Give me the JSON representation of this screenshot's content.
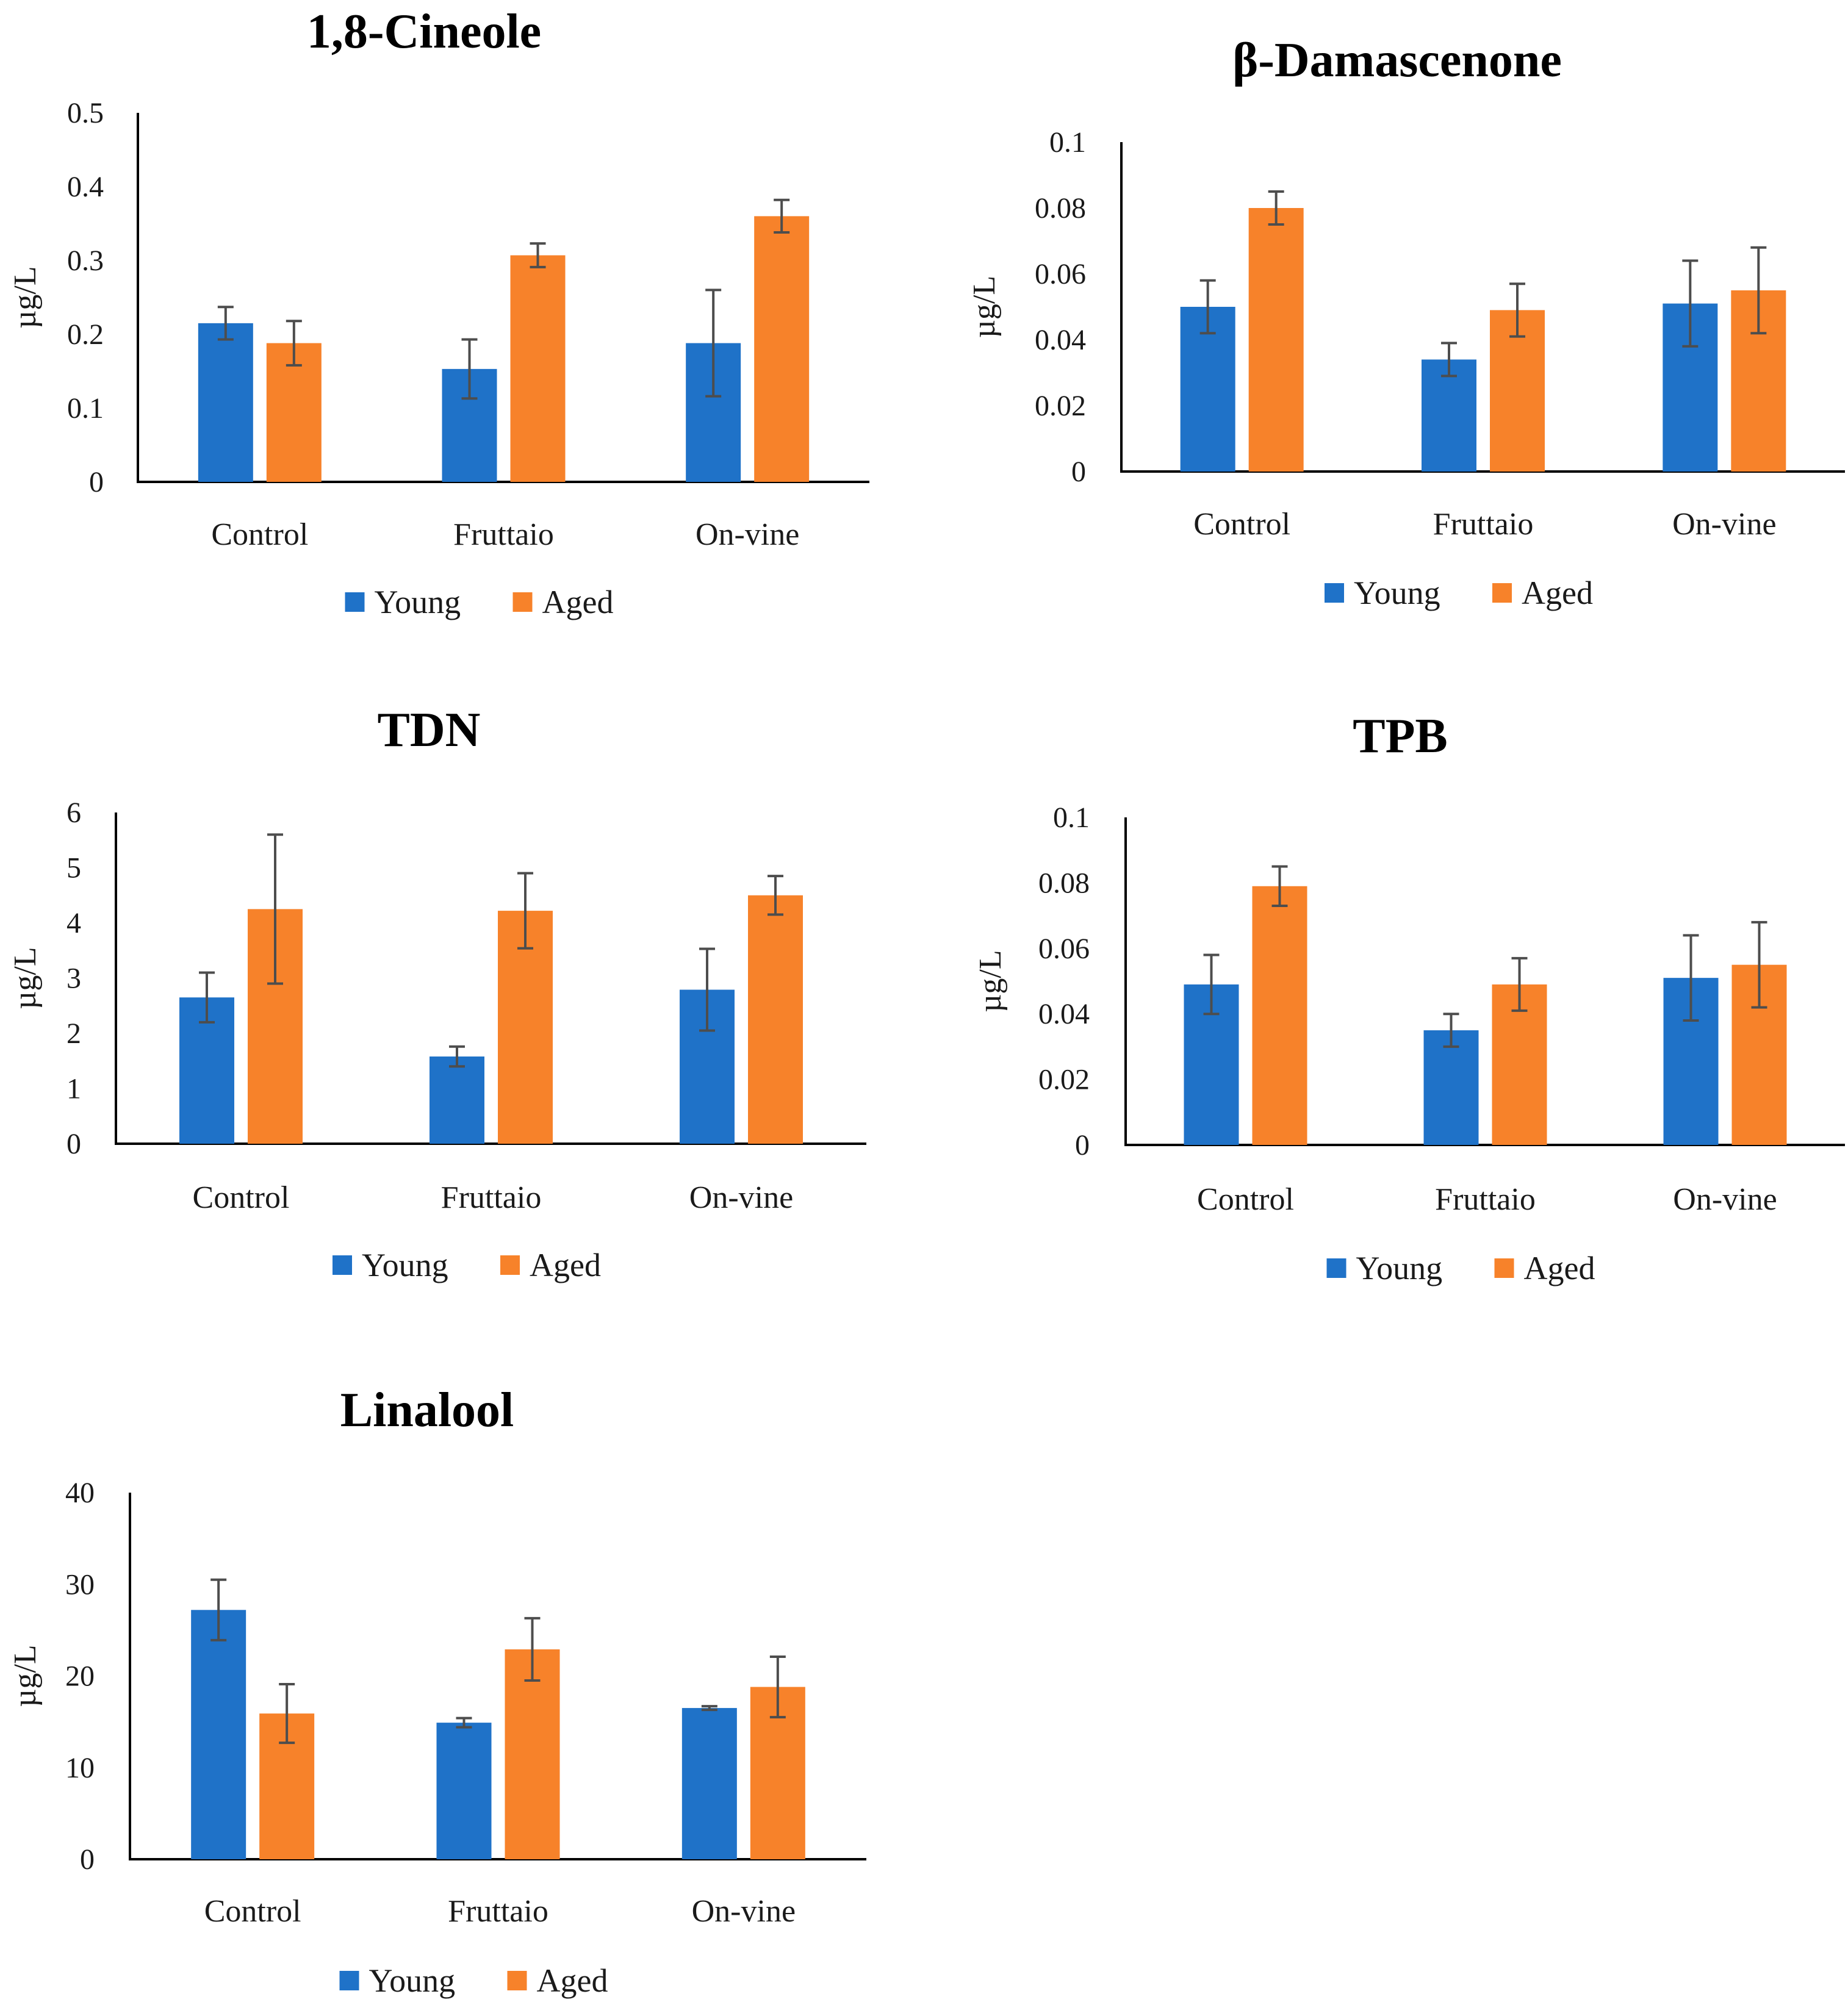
{
  "colors": {
    "young": "#1f72c8",
    "aged": "#f7822a"
  },
  "chart_data": [
    {
      "type": "bar",
      "title": "1,8-Cineole",
      "ylabel": "µg/L",
      "categories": [
        "Control",
        "Fruttaio",
        "On-vine"
      ],
      "ylim": [
        0,
        0.5
      ],
      "yticks": [
        "0",
        "0.1",
        "0.2",
        "0.3",
        "0.4",
        "0.5"
      ],
      "ytick_values": [
        0,
        0.1,
        0.2,
        0.3,
        0.4,
        0.5
      ],
      "series": [
        {
          "name": "Young",
          "values": [
            0.215,
            0.153,
            0.188
          ],
          "errors": [
            0.022,
            0.04,
            0.072
          ]
        },
        {
          "name": "Aged",
          "values": [
            0.188,
            0.307,
            0.36
          ],
          "errors": [
            0.03,
            0.016,
            0.022
          ]
        }
      ]
    },
    {
      "type": "bar",
      "title": "β-Damascenone",
      "ylabel": "µg/L",
      "categories": [
        "Control",
        "Fruttaio",
        "On-vine"
      ],
      "ylim": [
        0,
        0.1
      ],
      "yticks": [
        "0",
        "0.02",
        "0.04",
        "0.06",
        "0.08",
        "0.1"
      ],
      "ytick_values": [
        0,
        0.02,
        0.04,
        0.06,
        0.08,
        0.1
      ],
      "series": [
        {
          "name": "Young",
          "values": [
            0.05,
            0.034,
            0.051
          ],
          "errors": [
            0.008,
            0.005,
            0.013
          ]
        },
        {
          "name": "Aged",
          "values": [
            0.08,
            0.049,
            0.055
          ],
          "errors": [
            0.005,
            0.008,
            0.013
          ]
        }
      ]
    },
    {
      "type": "bar",
      "title": "TDN",
      "ylabel": "µg/L",
      "categories": [
        "Control",
        "Fruttaio",
        "On-vine"
      ],
      "ylim": [
        0,
        6
      ],
      "yticks": [
        "0",
        "1",
        "2",
        "3",
        "4",
        "5",
        "6"
      ],
      "ytick_values": [
        0,
        1,
        2,
        3,
        4,
        5,
        6
      ],
      "series": [
        {
          "name": "Young",
          "values": [
            2.65,
            1.58,
            2.79
          ],
          "errors": [
            0.45,
            0.18,
            0.74
          ]
        },
        {
          "name": "Aged",
          "values": [
            4.25,
            4.22,
            4.5
          ],
          "errors": [
            1.35,
            0.68,
            0.35
          ]
        }
      ]
    },
    {
      "type": "bar",
      "title": "TPB",
      "ylabel": "µg/L",
      "categories": [
        "Control",
        "Fruttaio",
        "On-vine"
      ],
      "ylim": [
        0,
        0.1
      ],
      "yticks": [
        "0",
        "0.02",
        "0.04",
        "0.06",
        "0.08",
        "0.1"
      ],
      "ytick_values": [
        0,
        0.02,
        0.04,
        0.06,
        0.08,
        0.1
      ],
      "series": [
        {
          "name": "Young",
          "values": [
            0.049,
            0.035,
            0.051
          ],
          "errors": [
            0.009,
            0.005,
            0.013
          ]
        },
        {
          "name": "Aged",
          "values": [
            0.079,
            0.049,
            0.055
          ],
          "errors": [
            0.006,
            0.008,
            0.013
          ]
        }
      ]
    },
    {
      "type": "bar",
      "title": "Linalool",
      "ylabel": "µg/L",
      "categories": [
        "Control",
        "Fruttaio",
        "On-vine"
      ],
      "ylim": [
        0,
        40
      ],
      "yticks": [
        "0",
        "10",
        "20",
        "30",
        "40"
      ],
      "ytick_values": [
        0,
        10,
        20,
        30,
        40
      ],
      "series": [
        {
          "name": "Young",
          "values": [
            27.2,
            14.9,
            16.5
          ],
          "errors": [
            3.3,
            0.5,
            0.2
          ]
        },
        {
          "name": "Aged",
          "values": [
            15.9,
            22.9,
            18.8
          ],
          "errors": [
            3.2,
            3.4,
            3.3
          ]
        }
      ]
    }
  ]
}
